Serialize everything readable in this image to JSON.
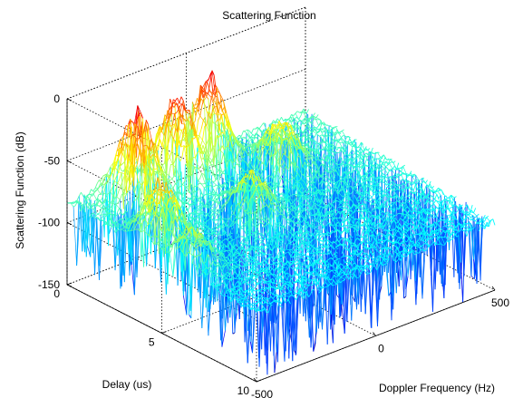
{
  "chart_data": {
    "type": "surface3d",
    "title": "Scattering Function",
    "xlabel": "Doppler Frequency (Hz)",
    "ylabel": "Delay (us)",
    "zlabel": "Scattering Function (dB)",
    "xlim": [
      -500,
      500
    ],
    "ylim": [
      0,
      10
    ],
    "zlim": [
      -150,
      0
    ],
    "xticks": [
      "-500",
      "0",
      "500"
    ],
    "yticks": [
      "0",
      "5",
      "10"
    ],
    "zticks": [
      "0",
      "-50",
      "-100",
      "-150"
    ],
    "grid": true,
    "colormap": "jet",
    "noise_floor_db": -80,
    "peaks": [
      {
        "doppler_hz": -300,
        "delay_us": 1.2,
        "level_db": -5
      },
      {
        "doppler_hz": -100,
        "delay_us": 0.8,
        "level_db": -10
      },
      {
        "doppler_hz": 50,
        "delay_us": 0.6,
        "level_db": -10
      },
      {
        "doppler_hz": -420,
        "delay_us": 4.0,
        "level_db": -30
      },
      {
        "doppler_hz": -450,
        "delay_us": 6.0,
        "level_db": -50
      },
      {
        "doppler_hz": -80,
        "delay_us": 4.5,
        "level_db": -45
      },
      {
        "doppler_hz": 200,
        "delay_us": 2.5,
        "level_db": -40
      }
    ]
  }
}
